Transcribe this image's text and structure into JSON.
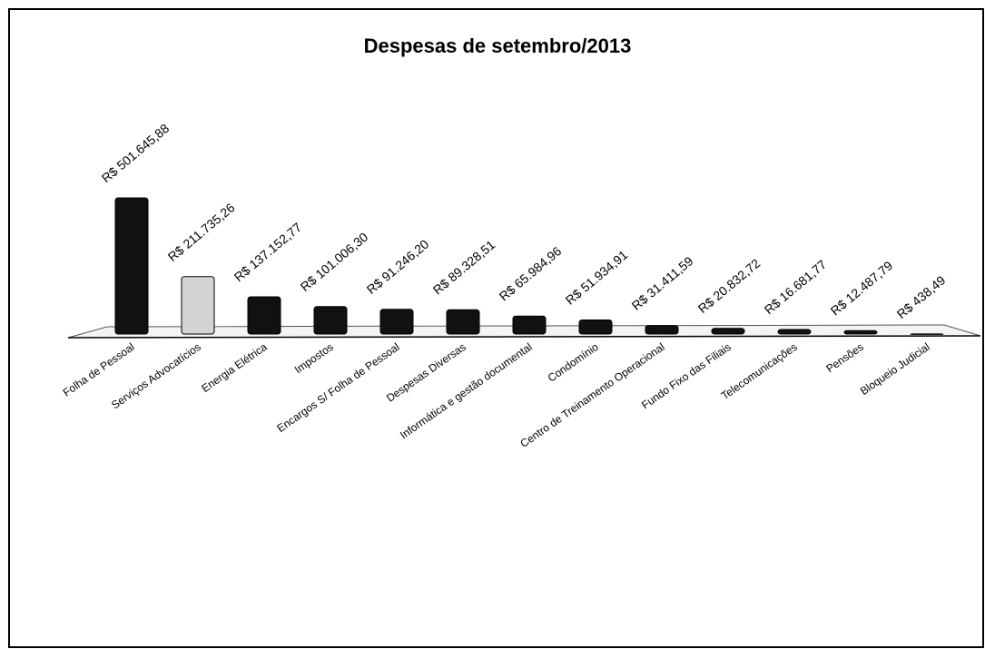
{
  "chart_data": {
    "type": "bar",
    "title": "Despesas de setembro/2013",
    "categories": [
      "Folha de Pessoal",
      "Serviços Advocatícios",
      "Energia Elétrica",
      "Impostos",
      "Encargos S/ Folha de Pessoal",
      "Despesas Diversas",
      "Informática e gestão documental",
      "Condomínio",
      "Centro de Treinamento Operacional",
      "Fundo Fixo das Filiais",
      "Telecomunicações",
      "Pensões",
      "Bloqueio Judicial"
    ],
    "values": [
      501645.88,
      211735.26,
      137152.77,
      101006.3,
      91246.2,
      89328.51,
      65984.96,
      51934.91,
      31411.59,
      20832.72,
      16681.77,
      12487.79,
      438.49
    ],
    "value_labels": [
      "R$ 501.645,88",
      "R$ 211.735,26",
      "R$ 137.152,77",
      "R$ 101.006,30",
      "R$ 91.246,20",
      "R$ 89.328,51",
      "R$ 65.984,96",
      "R$ 51.934,91",
      "R$ 31.411,59",
      "R$ 20.832,72",
      "R$ 16.681,77",
      "R$ 12.487,79",
      "R$ 438,49"
    ],
    "colors": [
      "#111111",
      "#d4d4d4",
      "#111111",
      "#111111",
      "#111111",
      "#111111",
      "#111111",
      "#111111",
      "#111111",
      "#111111",
      "#111111",
      "#111111",
      "#111111"
    ]
  }
}
